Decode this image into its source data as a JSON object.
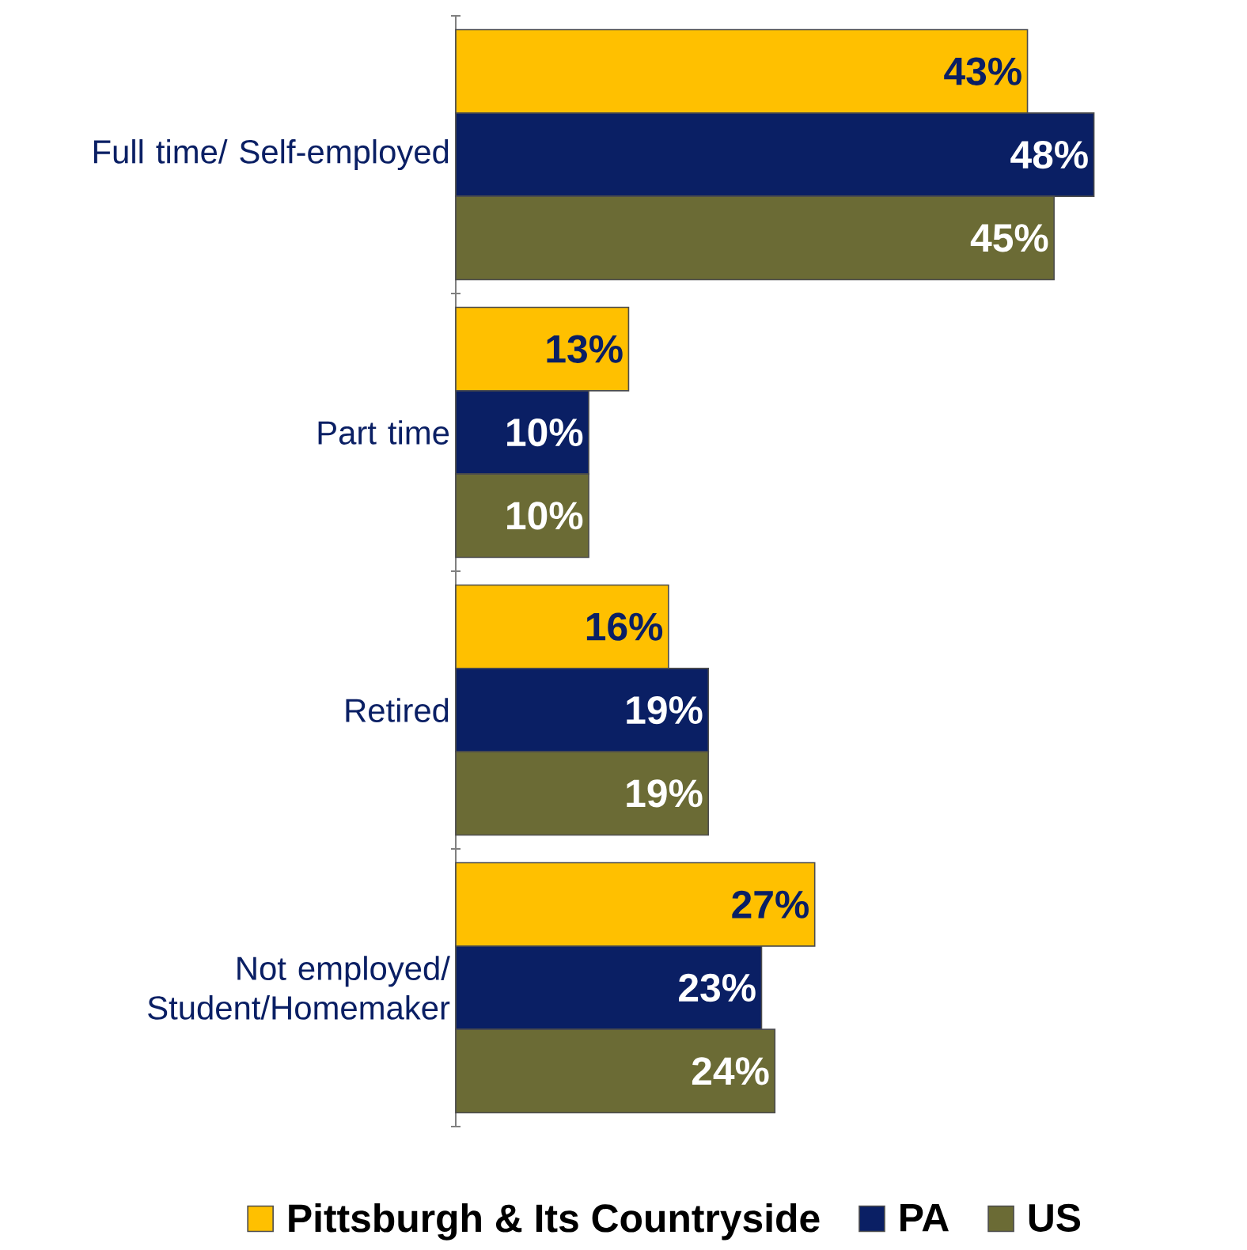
{
  "chart_data": {
    "type": "bar",
    "orientation": "horizontal",
    "categories": [
      "Full time/ Self-employed",
      "Part time",
      "Retired",
      "Not employed/ Student/Homemaker"
    ],
    "series": [
      {
        "name": "Pittsburgh & Its Countryside",
        "color": "#ffc000",
        "values": [
          43,
          13,
          16,
          27
        ],
        "value_labels": [
          "43%",
          "13%",
          "16%",
          "27%"
        ]
      },
      {
        "name": "PA",
        "color": "#0a1f64",
        "values": [
          48,
          10,
          19,
          23
        ],
        "value_labels": [
          "48%",
          "10%",
          "19%",
          "23%"
        ]
      },
      {
        "name": "US",
        "color": "#6b6b35",
        "values": [
          45,
          10,
          19,
          24
        ],
        "value_labels": [
          "45%",
          "10%",
          "19%",
          "24%"
        ]
      }
    ],
    "legend": "bottom"
  }
}
